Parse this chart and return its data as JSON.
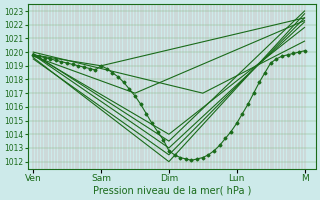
{
  "xlabel": "Pression niveau de la mer( hPa )",
  "bg_color": "#cdeaea",
  "plot_bg_color": "#cdeaea",
  "grid_color_h": "#88bb88",
  "grid_color_v": "#cc9999",
  "line_color": "#1a6b1a",
  "ylim": [
    1011.5,
    1023.5
  ],
  "yticks": [
    1012,
    1013,
    1014,
    1015,
    1016,
    1017,
    1018,
    1019,
    1020,
    1021,
    1022,
    1023
  ],
  "xtick_labels": [
    "Ven",
    "Sam",
    "Dim",
    "Lun",
    "M"
  ],
  "xtick_pos": [
    0,
    24,
    48,
    72,
    96
  ],
  "xlim": [
    -2,
    100
  ],
  "n_vgrid": 97,
  "marker": "D",
  "markersize": 1.5,
  "linewidth": 0.8,
  "detail_line": {
    "x": [
      0,
      2,
      4,
      6,
      8,
      10,
      12,
      14,
      16,
      18,
      20,
      22,
      24,
      26,
      28,
      30,
      32,
      34,
      36,
      38,
      40,
      42,
      44,
      46,
      48,
      50,
      52,
      54,
      56,
      58,
      60,
      62,
      64,
      66,
      68,
      70,
      72,
      74,
      76,
      78,
      80,
      82,
      84,
      86,
      88,
      90,
      92,
      94,
      96
    ],
    "y": [
      1019.8,
      1019.7,
      1019.6,
      1019.5,
      1019.4,
      1019.3,
      1019.2,
      1019.1,
      1019.0,
      1018.9,
      1018.8,
      1018.7,
      1019.0,
      1018.8,
      1018.5,
      1018.2,
      1017.8,
      1017.3,
      1016.8,
      1016.2,
      1015.5,
      1014.8,
      1014.2,
      1013.6,
      1012.8,
      1012.5,
      1012.3,
      1012.2,
      1012.1,
      1012.2,
      1012.3,
      1012.5,
      1012.8,
      1013.2,
      1013.7,
      1014.2,
      1014.8,
      1015.5,
      1016.2,
      1017.0,
      1017.8,
      1018.5,
      1019.2,
      1019.5,
      1019.7,
      1019.8,
      1019.9,
      1020.0,
      1020.1
    ]
  },
  "straight_lines": [
    {
      "x0": 0,
      "y0": 1019.8,
      "xmid": 24,
      "ymid": 1019.0,
      "xend": 96,
      "yend": 1022.5
    },
    {
      "x0": 0,
      "y0": 1019.7,
      "xmid": 36,
      "ymid": 1017.0,
      "xend": 96,
      "yend": 1022.3
    },
    {
      "x0": 0,
      "y0": 1019.6,
      "xmid": 48,
      "ymid": 1012.0,
      "xend": 96,
      "yend": 1022.8
    },
    {
      "x0": 0,
      "y0": 1019.5,
      "xmid": 48,
      "ymid": 1012.5,
      "xend": 96,
      "yend": 1022.5
    },
    {
      "x0": 0,
      "y0": 1019.8,
      "xmid": 48,
      "ymid": 1013.0,
      "xend": 96,
      "yend": 1022.2
    },
    {
      "x0": 0,
      "y0": 1019.9,
      "xmid": 48,
      "ymid": 1013.5,
      "xend": 96,
      "yend": 1023.0
    },
    {
      "x0": 0,
      "y0": 1019.8,
      "xmid": 48,
      "ymid": 1014.0,
      "xend": 96,
      "yend": 1021.8
    },
    {
      "x0": 0,
      "y0": 1020.0,
      "xmid": 60,
      "ymid": 1017.0,
      "xend": 96,
      "yend": 1020.8
    }
  ]
}
